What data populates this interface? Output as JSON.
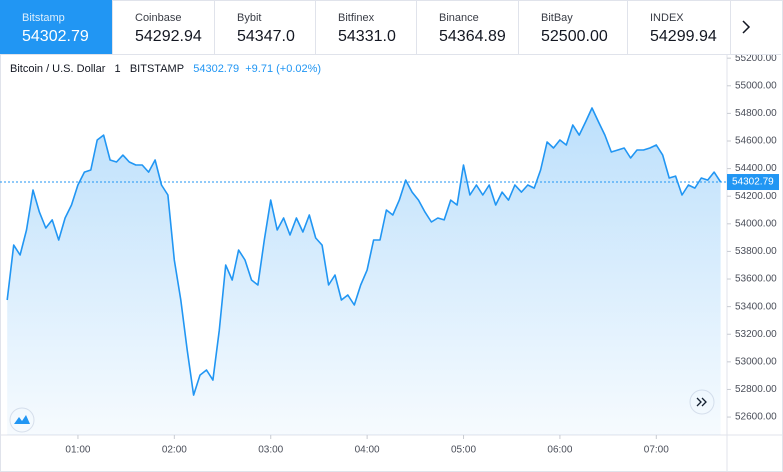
{
  "tabs": [
    {
      "name": "Bitstamp",
      "price": "54302.79"
    },
    {
      "name": "Coinbase",
      "price": "54292.94"
    },
    {
      "name": "Bybit",
      "price": "54347.0"
    },
    {
      "name": "Bitfinex",
      "price": "54331.0"
    },
    {
      "name": "Binance",
      "price": "54364.89"
    },
    {
      "name": "BitBay",
      "price": "52500.00"
    },
    {
      "name": "INDEX",
      "price": "54299.94"
    }
  ],
  "header": {
    "symbol": "Bitcoin / U.S. Dollar",
    "interval": "1",
    "exchange": "BITSTAMP",
    "price": "54302.79",
    "change": "+9.71 (+0.02%)"
  },
  "chart_data": {
    "type": "area",
    "color": "#2196f3",
    "x": [
      16,
      20,
      24,
      28,
      32,
      36,
      40,
      44,
      48,
      52,
      56,
      60,
      64,
      68,
      72,
      76,
      80,
      84,
      88,
      92,
      96,
      100,
      104,
      108,
      112,
      116,
      120,
      124,
      128,
      132,
      136,
      140,
      144,
      148,
      152,
      156,
      160,
      164,
      168,
      172,
      176,
      180,
      184,
      188,
      192,
      196,
      200,
      204,
      208,
      212,
      216,
      220,
      224,
      228,
      232,
      236,
      240,
      244,
      248,
      252,
      256,
      260,
      264,
      268,
      272,
      276,
      280,
      284,
      288,
      292,
      296,
      300,
      304,
      308,
      312,
      316,
      320,
      324,
      328,
      332,
      336,
      340,
      344,
      348,
      352,
      356,
      360,
      364,
      368,
      372,
      376,
      380,
      384,
      388,
      392,
      396,
      400,
      404,
      408,
      412,
      416,
      420,
      424,
      428,
      432,
      436,
      440,
      444,
      448,
      452,
      456,
      460
    ],
    "values": [
      53448,
      53846,
      53774,
      53955,
      54245,
      54085,
      53970,
      54028,
      53883,
      54042,
      54136,
      54281,
      54375,
      54390,
      54607,
      54643,
      54462,
      54448,
      54498,
      54448,
      54426,
      54426,
      54375,
      54462,
      54281,
      54209,
      53738,
      53448,
      53086,
      52759,
      52904,
      52941,
      52868,
      53230,
      53701,
      53593,
      53810,
      53738,
      53593,
      53557,
      53883,
      54172,
      53955,
      54042,
      53919,
      54042,
      53941,
      54064,
      53897,
      53846,
      53557,
      53629,
      53448,
      53484,
      53412,
      53557,
      53665,
      53883,
      53883,
      54100,
      54064,
      54172,
      54317,
      54230,
      54172,
      54085,
      54013,
      54042,
      54028,
      54172,
      54136,
      54426,
      54209,
      54281,
      54209,
      54281,
      54136,
      54230,
      54172,
      54281,
      54230,
      54281,
      54259,
      54390,
      54593,
      54549,
      54607,
      54571,
      54716,
      54643,
      54738,
      54839,
      54738,
      54643,
      54520,
      54535,
      54549,
      54477,
      54535,
      54535,
      54549,
      54571,
      54498,
      54332,
      54346,
      54209,
      54281,
      54259,
      54332,
      54317,
      54375,
      54302.79
    ],
    "xlim": [
      14.6,
      464
    ],
    "ylim": [
      52470,
      55223
    ],
    "xticks": [
      {
        "value": 60,
        "label": "01:00"
      },
      {
        "value": 120,
        "label": "02:00"
      },
      {
        "value": 180,
        "label": "03:00"
      },
      {
        "value": 240,
        "label": "04:00"
      },
      {
        "value": 300,
        "label": "05:00"
      },
      {
        "value": 360,
        "label": "06:00"
      },
      {
        "value": 420,
        "label": "07:00"
      }
    ],
    "yticks": [
      {
        "value": 52600,
        "label": "52600.00"
      },
      {
        "value": 52800,
        "label": "52800.00"
      },
      {
        "value": 53000,
        "label": "53000.00"
      },
      {
        "value": 53200,
        "label": "53200.00"
      },
      {
        "value": 53400,
        "label": "53400.00"
      },
      {
        "value": 53600,
        "label": "53600.00"
      },
      {
        "value": 53800,
        "label": "53800.00"
      },
      {
        "value": 54000,
        "label": "54000.00"
      },
      {
        "value": 54200,
        "label": "54200.00"
      },
      {
        "value": 54400,
        "label": "54400.00"
      },
      {
        "value": 54600,
        "label": "54600.00"
      },
      {
        "value": 54800,
        "label": "54800.00"
      },
      {
        "value": 55000,
        "label": "55000.00"
      },
      {
        "value": 55200,
        "label": "55200.00"
      }
    ]
  }
}
